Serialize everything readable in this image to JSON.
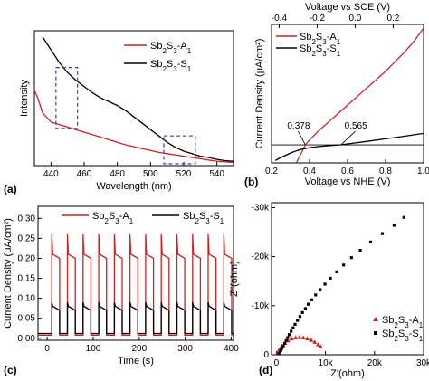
{
  "chart_data": [
    {
      "panel": "(a)",
      "type": "line",
      "xlabel": "Wavelength (nm)",
      "ylabel": "Intensity",
      "xlim": [
        430,
        550
      ],
      "xticks": [
        440,
        460,
        480,
        500,
        520,
        540
      ],
      "yticks": [],
      "grid": false,
      "legend": "top-right",
      "series": [
        {
          "name": "Sb2S3-A1",
          "color": "#cc2222",
          "x": [
            430,
            432,
            435,
            440,
            445,
            450,
            455,
            460,
            465,
            470,
            475,
            480,
            485,
            490,
            495,
            500,
            505,
            510,
            515,
            520,
            525,
            530,
            535,
            540,
            545,
            550
          ],
          "y": [
            0.58,
            0.52,
            0.4,
            0.33,
            0.31,
            0.29,
            0.27,
            0.25,
            0.23,
            0.21,
            0.19,
            0.17,
            0.15,
            0.135,
            0.12,
            0.105,
            0.09,
            0.08,
            0.07,
            0.06,
            0.05,
            0.04,
            0.03,
            0.02,
            0.015,
            0.01
          ]
        },
        {
          "name": "Sb2S3-S1",
          "color": "#000000",
          "x": [
            435,
            440,
            445,
            450,
            455,
            460,
            465,
            470,
            475,
            480,
            485,
            490,
            495,
            500,
            505,
            510,
            515,
            520,
            525,
            530,
            535,
            540,
            545,
            550
          ],
          "y": [
            1.0,
            0.9,
            0.8,
            0.72,
            0.66,
            0.61,
            0.56,
            0.52,
            0.49,
            0.46,
            0.42,
            0.37,
            0.32,
            0.27,
            0.22,
            0.17,
            0.13,
            0.1,
            0.08,
            0.06,
            0.05,
            0.035,
            0.025,
            0.02
          ]
        }
      ],
      "boxes": [
        {
          "x": [
            443,
            456
          ],
          "y": [
            0.28,
            0.76
          ]
        },
        {
          "x": [
            508,
            527
          ],
          "y": [
            0.0,
            0.22
          ]
        }
      ]
    },
    {
      "panel": "(b)",
      "type": "line",
      "xlabel": "Voltage vs NHE  (V)",
      "x2label": "Voltage vs SCE (V)",
      "ylabel": "Current Density (μA/cm²)",
      "xlim": [
        0.2,
        1.0
      ],
      "xticks": [
        "0.2",
        "0.4",
        "0.6",
        "0.8",
        "1.0"
      ],
      "x2lim": [
        -0.44,
        0.36
      ],
      "x2ticks": [
        "-0.4",
        "-0.2",
        "0.0",
        "0.2"
      ],
      "ylim": [
        -1.5,
        10
      ],
      "yticks": [],
      "zero_line": true,
      "legend": "top-left",
      "series": [
        {
          "name": "Sb2S3-A1",
          "color": "#cc2222",
          "x": [
            0.33,
            0.35,
            0.37,
            0.378,
            0.4,
            0.45,
            0.5,
            0.55,
            0.6,
            0.65,
            0.7,
            0.75,
            0.8,
            0.85,
            0.9,
            0.95,
            1.0
          ],
          "y": [
            -1.5,
            -0.9,
            -0.25,
            0.0,
            0.4,
            1.2,
            1.9,
            2.6,
            3.3,
            4.0,
            4.7,
            5.4,
            6.1,
            6.9,
            7.7,
            8.6,
            9.7
          ]
        },
        {
          "name": "Sb2S3-S1",
          "color": "#000000",
          "x": [
            0.22,
            0.25,
            0.28,
            0.3,
            0.33,
            0.36,
            0.4,
            0.45,
            0.5,
            0.565,
            0.6,
            0.7,
            0.8,
            0.9,
            1.0
          ],
          "y": [
            -1.3,
            -1.05,
            -0.82,
            -0.68,
            -0.5,
            -0.36,
            -0.24,
            -0.14,
            -0.07,
            0.0,
            0.08,
            0.28,
            0.5,
            0.72,
            0.95
          ]
        }
      ],
      "annotations": [
        {
          "text": "0.378",
          "x": 0.378
        },
        {
          "text": "0.565",
          "x": 0.565
        }
      ]
    },
    {
      "panel": "(c)",
      "type": "line",
      "xlabel": "Time (s)",
      "ylabel": "Current Density (μA/cm²)",
      "xlim": [
        -20,
        405
      ],
      "ylim": [
        -0.005,
        0.33
      ],
      "xticks": [
        "0",
        "100",
        "200",
        "300",
        "400"
      ],
      "yticks": [
        "0.00",
        "0.05",
        "0.10",
        "0.15",
        "0.20",
        "0.25",
        "0.30"
      ],
      "legend": "top",
      "pulses": {
        "start": [
          10,
          44,
          78,
          112,
          146,
          180,
          214,
          248,
          282,
          316,
          350,
          384
        ],
        "duration": 17
      },
      "series": [
        {
          "name": "Sb2S3-A1",
          "color": "#cc2222",
          "peak": 0.26,
          "plateau": 0.2,
          "dark": 0.008
        },
        {
          "name": "Sb2S3-S1",
          "color": "#000000",
          "peak": 0.09,
          "plateau": 0.07,
          "dark": 0.012
        }
      ]
    },
    {
      "panel": "(d)",
      "type": "scatter",
      "xlabel": "Z'(ohm)",
      "ylabel": "Z''(ohm)",
      "xlim": [
        -1000,
        30000
      ],
      "ylim": [
        0,
        31000
      ],
      "xticks": [
        "0",
        "10k",
        "20k",
        "30k"
      ],
      "yticks": [
        "0",
        "-10k",
        "-20k",
        "-30k"
      ],
      "legend": "bottom-right",
      "series": [
        {
          "name": "Sb2S3-A1",
          "color": "#cc2222",
          "marker": "triangle",
          "x": [
            200,
            600,
            1100,
            1700,
            2400,
            3100,
            3900,
            4700,
            5500,
            6300,
            7100,
            7800,
            8500,
            9000
          ],
          "y": [
            400,
            1100,
            1800,
            2400,
            2900,
            3300,
            3500,
            3600,
            3500,
            3300,
            3000,
            2600,
            2100,
            1700
          ]
        },
        {
          "name": "Sb2S3-S1",
          "color": "#000000",
          "marker": "square",
          "x": [
            500,
            700,
            900,
            1100,
            1400,
            1700,
            2000,
            2300,
            2600,
            3000,
            3400,
            3800,
            4300,
            4800,
            5300,
            5900,
            6500,
            7200,
            8000,
            8900,
            9900,
            11000,
            12300,
            13700,
            15300,
            17100,
            19200,
            21600,
            24000,
            26000
          ],
          "y": [
            200,
            500,
            900,
            1300,
            1800,
            2300,
            2900,
            3500,
            4100,
            4800,
            5500,
            6200,
            7000,
            7800,
            8600,
            9400,
            10300,
            11200,
            12200,
            13300,
            14400,
            15600,
            16900,
            18300,
            19800,
            21300,
            23000,
            24700,
            26400,
            28000
          ]
        }
      ]
    }
  ]
}
